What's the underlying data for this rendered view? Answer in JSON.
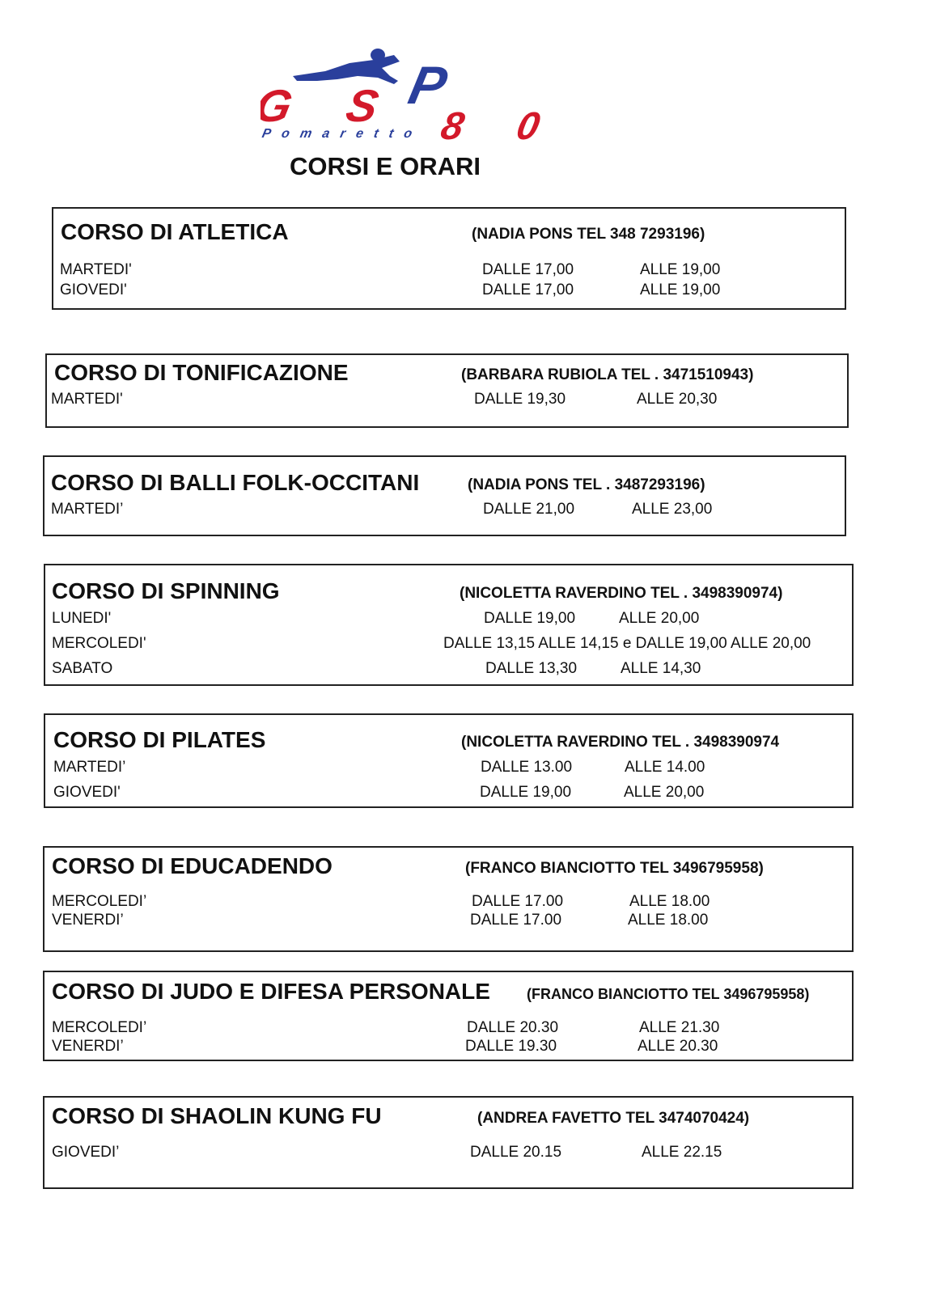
{
  "logo": {
    "text": "GSP80",
    "subtitle": "Pomaretto",
    "colors": {
      "red": "#d3192a",
      "blue": "#2a3f9c"
    }
  },
  "title": "CORSI E ORARI",
  "courses": [
    {
      "name": "CORSO DI ATLETICA",
      "contact": "(NADIA PONS TEL 348 7293196)",
      "rows": [
        {
          "day": "MARTEDI'",
          "from": "DALLE 17,00",
          "to": "ALLE 19,00"
        },
        {
          "day": "GIOVEDI'",
          "from": "DALLE 17,00",
          "to": "ALLE 19,00"
        }
      ]
    },
    {
      "name": "CORSO DI TONIFICAZIONE",
      "contact": "(BARBARA RUBIOLA TEL . 3471510943)",
      "rows": [
        {
          "day": "MARTEDI'",
          "from": "DALLE 19,30",
          "to": "ALLE 20,30"
        }
      ]
    },
    {
      "name": "CORSO DI BALLI FOLK-OCCITANI",
      "contact": "(NADIA PONS TEL . 3487293196)",
      "rows": [
        {
          "day": "MARTEDI’",
          "from": "DALLE 21,00",
          "to": "ALLE 23,00"
        }
      ]
    },
    {
      "name": "CORSO DI SPINNING",
      "contact": "(NICOLETTA RAVERDINO TEL . 3498390974)",
      "rows": [
        {
          "day": "LUNEDI'",
          "from": "DALLE 19,00",
          "to": "ALLE 20,00"
        },
        {
          "day": "MERCOLEDI'",
          "schedule": "DALLE 13,15 ALLE 14,15 e DALLE 19,00 ALLE 20,00"
        },
        {
          "day": "SABATO",
          "from": "DALLE 13,30",
          "to": "ALLE 14,30"
        }
      ]
    },
    {
      "name": "CORSO DI PILATES",
      "contact": "(NICOLETTA RAVERDINO TEL . 3498390974",
      "rows": [
        {
          "day": "MARTEDI’",
          "from": "DALLE 13.00",
          "to": "ALLE 14.00"
        },
        {
          "day": "GIOVEDI'",
          "from": "DALLE 19,00",
          "to": "ALLE 20,00"
        }
      ]
    },
    {
      "name": "CORSO DI EDUCADENDO",
      "contact": "(FRANCO BIANCIOTTO TEL 3496795958)",
      "rows": [
        {
          "day": "MERCOLEDI’",
          "from": "DALLE 17.00",
          "to": "ALLE 18.00"
        },
        {
          "day": "VENERDI’",
          "from": "DALLE 17.00",
          "to": "ALLE 18.00"
        }
      ]
    },
    {
      "name": "CORSO DI JUDO E DIFESA PERSONALE",
      "contact": "(FRANCO BIANCIOTTO TEL 3496795958)",
      "rows": [
        {
          "day": "MERCOLEDI’",
          "from": "DALLE 20.30",
          "to": "ALLE 21.30"
        },
        {
          "day": "VENERDI’",
          "from": "DALLE 19.30",
          "to": "ALLE 20.30"
        }
      ]
    },
    {
      "name": "CORSO DI SHAOLIN KUNG FU",
      "contact": "(ANDREA FAVETTO TEL 3474070424)",
      "rows": [
        {
          "day": "GIOVEDI’",
          "from": "DALLE 20.15",
          "to": "ALLE 22.15"
        }
      ]
    }
  ]
}
